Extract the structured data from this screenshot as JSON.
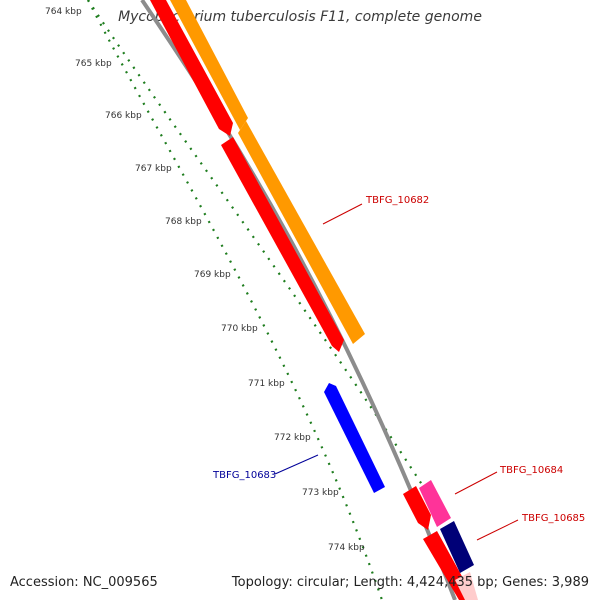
{
  "title": "Mycobacterium tuberculosis F11, complete genome",
  "accession": "Accession: NC_009565",
  "summary": "Topology: circular; Length: 4,424,435 bp; Genes: 3,989",
  "ticks": [
    "764 kbp",
    "765 kbp",
    "766 kbp",
    "767 kbp",
    "768 kbp",
    "769 kbp",
    "770 kbp",
    "771 kbp",
    "772 kbp",
    "773 kbp",
    "774 kbp"
  ],
  "genes": [
    {
      "label": "TBFG_10682",
      "color": "#cc0000"
    },
    {
      "label": "TBFG_10683",
      "color": "#000099"
    },
    {
      "label": "TBFG_10684",
      "color": "#cc0000"
    },
    {
      "label": "TBFG_10685",
      "color": "#cc0000"
    }
  ],
  "colors": {
    "backbone": "#8c8c8c",
    "cds_red": "#ff0000",
    "cds_orange": "#ff9900",
    "cds_blue": "#0000ff",
    "cds_pink": "#ff3399",
    "cds_navy": "#000077",
    "tick_green": "#1e7d1e"
  }
}
